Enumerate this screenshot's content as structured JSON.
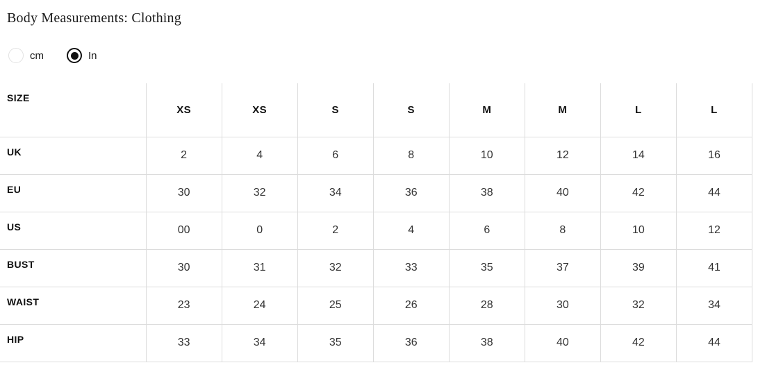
{
  "page": {
    "title": "Body Measurements: Clothing"
  },
  "unit_toggle": {
    "options": [
      {
        "label": "cm",
        "selected": false
      },
      {
        "label": "In",
        "selected": true
      }
    ]
  },
  "table": {
    "label_header": "SIZE",
    "columns": [
      "XS",
      "XS",
      "S",
      "S",
      "M",
      "M",
      "L",
      "L"
    ],
    "rows": [
      {
        "label": "UK",
        "values": [
          "2",
          "4",
          "6",
          "8",
          "10",
          "12",
          "14",
          "16"
        ]
      },
      {
        "label": "EU",
        "values": [
          "30",
          "32",
          "34",
          "36",
          "38",
          "40",
          "42",
          "44"
        ]
      },
      {
        "label": "US",
        "values": [
          "00",
          "0",
          "2",
          "4",
          "6",
          "8",
          "10",
          "12"
        ]
      },
      {
        "label": "BUST",
        "values": [
          "30",
          "31",
          "32",
          "33",
          "35",
          "37",
          "39",
          "41"
        ]
      },
      {
        "label": "WAIST",
        "values": [
          "23",
          "24",
          "25",
          "26",
          "28",
          "30",
          "32",
          "34"
        ]
      },
      {
        "label": "HIP",
        "values": [
          "33",
          "34",
          "35",
          "36",
          "38",
          "40",
          "42",
          "44"
        ]
      }
    ]
  },
  "colors": {
    "text": "#1a1a1a",
    "value_text": "#333333",
    "grid_line": "#dcdcdc",
    "radio_selected": "#111111",
    "radio_unselected_border": "#e2e2e2"
  }
}
